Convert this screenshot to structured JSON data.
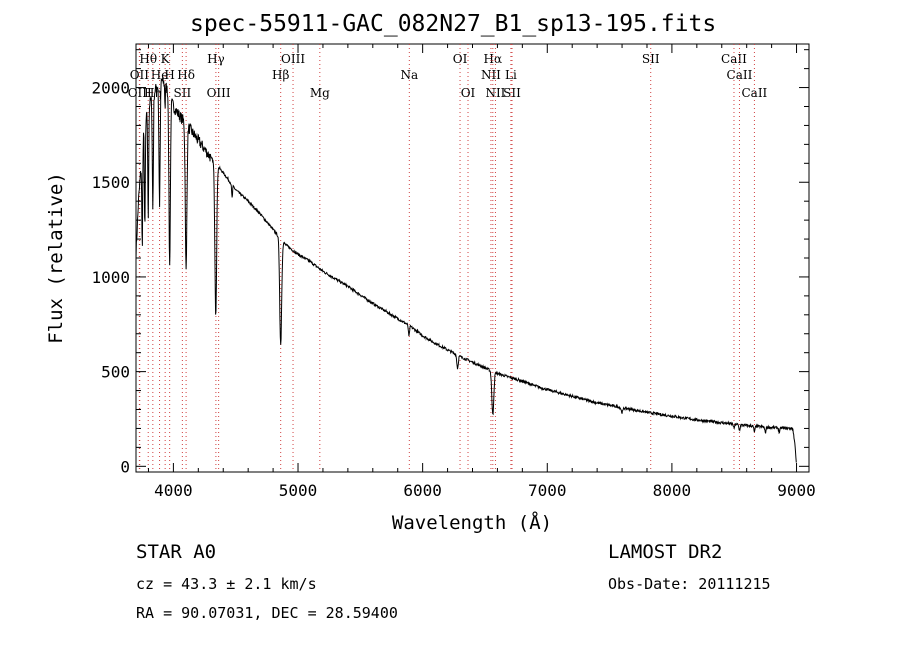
{
  "chart_data": {
    "type": "line",
    "title": "spec-55911-GAC_082N27_B1_sp13-195.fits",
    "xlabel": "Wavelength (Å)",
    "ylabel": "Flux (relative)",
    "xlim": [
      3700,
      9100
    ],
    "ylim": [
      -30,
      2230
    ],
    "xticks": [
      4000,
      5000,
      6000,
      7000,
      8000,
      9000
    ],
    "yticks": [
      0,
      500,
      1000,
      1500,
      2000
    ],
    "continuum": [
      [
        3700,
        1120
      ],
      [
        3720,
        1400
      ],
      [
        3760,
        1750
      ],
      [
        3800,
        1900
      ],
      [
        3850,
        1980
      ],
      [
        3900,
        2050
      ],
      [
        3950,
        1990
      ],
      [
        4000,
        1900
      ],
      [
        4050,
        1850
      ],
      [
        4100,
        1810
      ],
      [
        4200,
        1720
      ],
      [
        4300,
        1630
      ],
      [
        4400,
        1550
      ],
      [
        4500,
        1460
      ],
      [
        4600,
        1400
      ],
      [
        4700,
        1330
      ],
      [
        4800,
        1250
      ],
      [
        4900,
        1170
      ],
      [
        5000,
        1120
      ],
      [
        5100,
        1080
      ],
      [
        5200,
        1030
      ],
      [
        5300,
        990
      ],
      [
        5400,
        950
      ],
      [
        5500,
        905
      ],
      [
        5600,
        860
      ],
      [
        5700,
        820
      ],
      [
        5800,
        780
      ],
      [
        5900,
        740
      ],
      [
        6000,
        690
      ],
      [
        6100,
        650
      ],
      [
        6200,
        615
      ],
      [
        6300,
        580
      ],
      [
        6400,
        550
      ],
      [
        6500,
        520
      ],
      [
        6600,
        490
      ],
      [
        6700,
        470
      ],
      [
        6800,
        450
      ],
      [
        6900,
        425
      ],
      [
        7000,
        405
      ],
      [
        7200,
        370
      ],
      [
        7400,
        335
      ],
      [
        7600,
        310
      ],
      [
        7800,
        285
      ],
      [
        8000,
        265
      ],
      [
        8200,
        245
      ],
      [
        8400,
        230
      ],
      [
        8600,
        215
      ],
      [
        8800,
        205
      ],
      [
        8970,
        200
      ],
      [
        8990,
        100
      ],
      [
        9000,
        0
      ]
    ],
    "absorptions": [
      {
        "center": 3750,
        "depth": 500,
        "width": 5
      },
      {
        "center": 3771,
        "depth": 550,
        "width": 5
      },
      {
        "center": 3798,
        "depth": 600,
        "width": 5
      },
      {
        "center": 3835,
        "depth": 600,
        "width": 6
      },
      {
        "center": 3889,
        "depth": 650,
        "width": 7
      },
      {
        "center": 3933,
        "depth": 120,
        "width": 3
      },
      {
        "center": 3970,
        "depth": 900,
        "width": 8
      },
      {
        "center": 4102,
        "depth": 780,
        "width": 9
      },
      {
        "center": 4340,
        "depth": 800,
        "width": 10
      },
      {
        "center": 4471,
        "depth": 70,
        "width": 5
      },
      {
        "center": 4861,
        "depth": 560,
        "width": 11
      },
      {
        "center": 5890,
        "depth": 60,
        "width": 6
      },
      {
        "center": 6280,
        "depth": 70,
        "width": 8
      },
      {
        "center": 6563,
        "depth": 230,
        "width": 11
      },
      {
        "center": 7600,
        "depth": 25,
        "width": 10
      },
      {
        "center": 8498,
        "depth": 22,
        "width": 6
      },
      {
        "center": 8542,
        "depth": 30,
        "width": 7
      },
      {
        "center": 8662,
        "depth": 30,
        "width": 7
      },
      {
        "center": 8750,
        "depth": 30,
        "width": 7
      },
      {
        "center": 8862,
        "depth": 25,
        "width": 7
      }
    ],
    "lines_lab": [
      {
        "label": "Hθ",
        "wl": 3798,
        "row": 1
      },
      {
        "label": "K",
        "wl": 3934,
        "row": 1
      },
      {
        "label": "Hγ",
        "wl": 4341,
        "row": 1
      },
      {
        "label": "OIII",
        "wl": 4960,
        "row": 1
      },
      {
        "label": "OI",
        "wl": 6300,
        "row": 1
      },
      {
        "label": "Hα",
        "wl": 6563,
        "row": 1
      },
      {
        "label": "SII",
        "wl": 7830,
        "row": 1
      },
      {
        "label": "CaII",
        "wl": 8498,
        "row": 1
      },
      {
        "label": "OII",
        "wl": 3727,
        "row": 2
      },
      {
        "label": "He",
        "wl": 3889,
        "row": 2
      },
      {
        "label": "H",
        "wl": 3970,
        "row": 2
      },
      {
        "label": "Hδ",
        "wl": 4102,
        "row": 2
      },
      {
        "label": "Hβ",
        "wl": 4861,
        "row": 2
      },
      {
        "label": "Na",
        "wl": 5893,
        "row": 2
      },
      {
        "label": "NII",
        "wl": 6548,
        "row": 2
      },
      {
        "label": "Li",
        "wl": 6708,
        "row": 2
      },
      {
        "label": "CaII",
        "wl": 8542,
        "row": 2
      },
      {
        "label": "OIII",
        "wl": 3730,
        "row": 3
      },
      {
        "label": "Hη",
        "wl": 3835,
        "row": 3
      },
      {
        "label": "SII",
        "wl": 4072,
        "row": 3
      },
      {
        "label": "OIII",
        "wl": 4363,
        "row": 3
      },
      {
        "label": "Mg",
        "wl": 5175,
        "row": 3
      },
      {
        "label": "OI",
        "wl": 6364,
        "row": 3
      },
      {
        "label": "NII",
        "wl": 6584,
        "row": 3
      },
      {
        "label": "SII",
        "wl": 6717,
        "row": 3
      },
      {
        "label": "CaII",
        "wl": 8662,
        "row": 3
      }
    ]
  },
  "info": {
    "class": "STAR    A0",
    "survey": "LAMOST DR2",
    "cz": "cz = 43.3 ± 2.1 km/s",
    "obsdate": "Obs-Date: 20111215",
    "radec": "RA =  90.07031, DEC =  28.59400"
  }
}
